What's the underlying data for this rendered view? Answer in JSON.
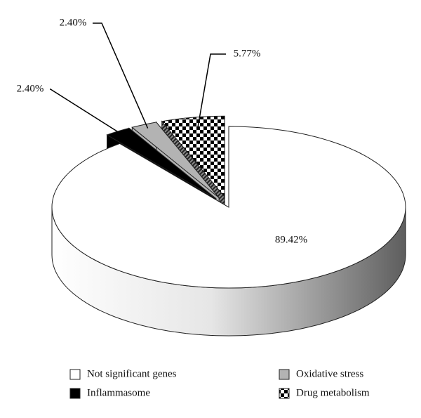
{
  "chart_data": {
    "type": "pie3d",
    "categories": [
      "Not significant genes",
      "Inflammasome",
      "Oxidative stress",
      "Drug metabolism"
    ],
    "values": [
      89.42,
      2.4,
      2.4,
      5.77
    ],
    "value_labels": [
      "89.42%",
      "2.40%",
      "2.40%",
      "5.77%"
    ],
    "colors": [
      "#ffffff",
      "#000000",
      "#b3b3b3",
      "checkered"
    ],
    "legend": "bottom"
  }
}
